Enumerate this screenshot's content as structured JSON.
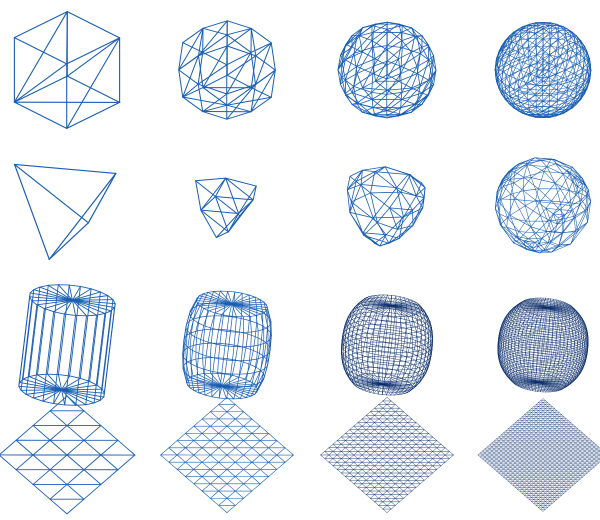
{
  "figure": {
    "stroke_color": "#1a5fb4",
    "dense_color": "#0a2d6b",
    "background": "#ffffff",
    "rows": [
      {
        "id": "cube",
        "shape": "cube",
        "stages": [
          {
            "level": 0
          },
          {
            "level": 1
          },
          {
            "level": 2
          },
          {
            "level": 3
          }
        ]
      },
      {
        "id": "tetrahedron",
        "shape": "tetrahedron",
        "stages": [
          {
            "level": 0
          },
          {
            "level": 1
          },
          {
            "level": 2
          },
          {
            "level": 3
          }
        ]
      },
      {
        "id": "cylinder",
        "shape": "cylinder",
        "stages": [
          {
            "level": 0
          },
          {
            "level": 1
          },
          {
            "level": 2
          },
          {
            "level": 3
          }
        ]
      },
      {
        "id": "plane",
        "shape": "plane",
        "stages": [
          {
            "level": 0
          },
          {
            "level": 1
          },
          {
            "level": 2
          },
          {
            "level": 3
          }
        ]
      }
    ]
  }
}
